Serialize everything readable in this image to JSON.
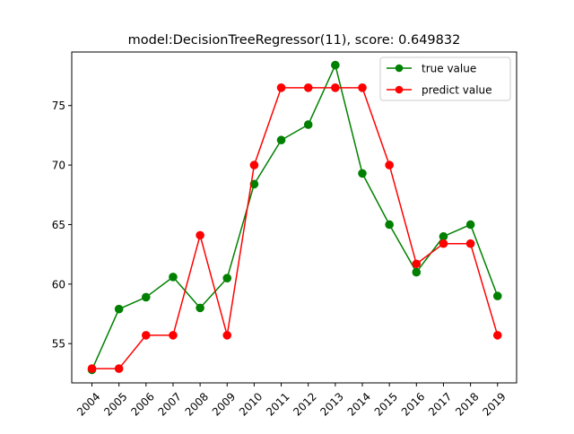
{
  "chart_data": {
    "type": "line",
    "title": "model:DecisionTreeRegressor(11), score: 0.649832",
    "xlabel": "",
    "ylabel": "",
    "categories": [
      "2004",
      "2005",
      "2006",
      "2007",
      "2008",
      "2009",
      "2010",
      "2011",
      "2012",
      "2013",
      "2014",
      "2015",
      "2016",
      "2017",
      "2018",
      "2019"
    ],
    "ylim": [
      51.7,
      79.5
    ],
    "yticks": [
      55,
      60,
      65,
      70,
      75
    ],
    "ytick_labels": [
      "55",
      "60",
      "65",
      "70",
      "75"
    ],
    "grid": false,
    "legend": {
      "placement": "top-right"
    },
    "series": [
      {
        "name": "true value",
        "color": "#008000",
        "marker": "circle",
        "values": [
          52.8,
          57.9,
          58.9,
          60.6,
          58.0,
          60.5,
          68.4,
          72.1,
          73.4,
          78.4,
          69.3,
          65.0,
          61.0,
          64.0,
          65.0,
          59.0
        ]
      },
      {
        "name": "predict value",
        "color": "#ff0000",
        "marker": "circle",
        "values": [
          52.9,
          52.9,
          55.7,
          55.7,
          64.1,
          55.7,
          70.0,
          76.5,
          76.5,
          76.5,
          76.5,
          70.0,
          61.7,
          63.4,
          63.4,
          55.7
        ]
      }
    ]
  }
}
